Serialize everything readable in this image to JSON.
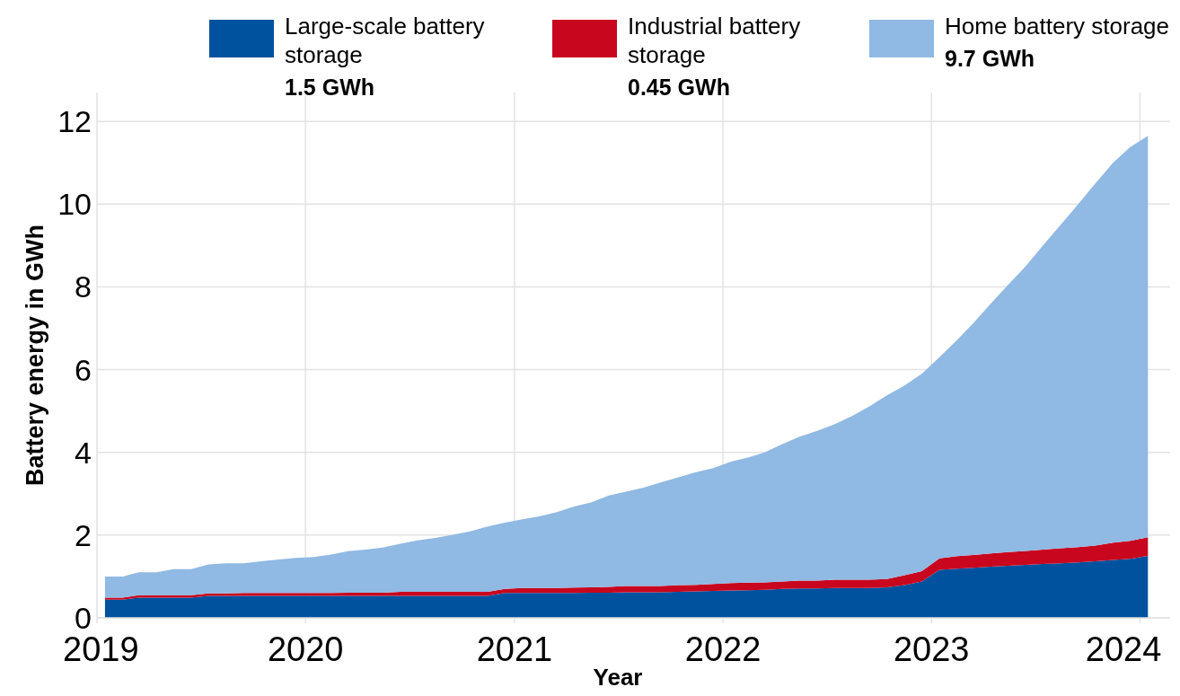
{
  "chart_data": {
    "type": "area",
    "stacked": true,
    "xlabel": "Year",
    "ylabel": "Battery energy in GWh",
    "x": [
      "2019-01-15",
      "2019-02-15",
      "2019-03-15",
      "2019-04-15",
      "2019-05-15",
      "2019-06-15",
      "2019-07-15",
      "2019-08-15",
      "2019-09-15",
      "2019-10-15",
      "2019-11-15",
      "2019-12-15",
      "2020-01-15",
      "2020-02-15",
      "2020-03-15",
      "2020-04-15",
      "2020-05-15",
      "2020-06-15",
      "2020-07-15",
      "2020-08-15",
      "2020-09-15",
      "2020-10-15",
      "2020-11-15",
      "2020-12-15",
      "2021-01-15",
      "2021-02-15",
      "2021-03-15",
      "2021-04-15",
      "2021-05-15",
      "2021-06-15",
      "2021-07-15",
      "2021-08-15",
      "2021-09-15",
      "2021-10-15",
      "2021-11-15",
      "2021-12-15",
      "2022-01-15",
      "2022-02-15",
      "2022-03-15",
      "2022-04-15",
      "2022-05-15",
      "2022-06-15",
      "2022-07-15",
      "2022-08-15",
      "2022-09-15",
      "2022-10-15",
      "2022-11-15",
      "2022-12-15",
      "2023-01-15",
      "2023-02-15",
      "2023-03-15",
      "2023-04-15",
      "2023-05-15",
      "2023-06-15",
      "2023-07-15",
      "2023-08-15",
      "2023-09-15",
      "2023-10-15",
      "2023-11-15",
      "2023-12-15",
      "2024-01-15"
    ],
    "series": [
      {
        "name": "Large-scale battery storage",
        "color": "#00529f",
        "values": [
          0.44,
          0.44,
          0.49,
          0.49,
          0.49,
          0.49,
          0.53,
          0.53,
          0.53,
          0.53,
          0.53,
          0.53,
          0.53,
          0.53,
          0.53,
          0.53,
          0.53,
          0.53,
          0.53,
          0.53,
          0.53,
          0.53,
          0.53,
          0.6,
          0.6,
          0.6,
          0.6,
          0.6,
          0.61,
          0.61,
          0.62,
          0.62,
          0.62,
          0.63,
          0.64,
          0.65,
          0.66,
          0.67,
          0.68,
          0.7,
          0.71,
          0.71,
          0.72,
          0.72,
          0.72,
          0.74,
          0.79,
          0.88,
          1.16,
          1.19,
          1.21,
          1.24,
          1.26,
          1.28,
          1.3,
          1.32,
          1.34,
          1.37,
          1.4,
          1.43,
          1.5
        ]
      },
      {
        "name": "Industrial battery storage",
        "color": "#c8071e",
        "values": [
          0.05,
          0.05,
          0.06,
          0.06,
          0.06,
          0.06,
          0.06,
          0.06,
          0.07,
          0.07,
          0.07,
          0.07,
          0.07,
          0.07,
          0.08,
          0.08,
          0.08,
          0.1,
          0.1,
          0.1,
          0.1,
          0.1,
          0.1,
          0.1,
          0.12,
          0.12,
          0.12,
          0.13,
          0.13,
          0.14,
          0.15,
          0.15,
          0.15,
          0.16,
          0.16,
          0.17,
          0.18,
          0.18,
          0.18,
          0.18,
          0.19,
          0.19,
          0.2,
          0.2,
          0.2,
          0.2,
          0.24,
          0.25,
          0.28,
          0.3,
          0.31,
          0.32,
          0.33,
          0.34,
          0.35,
          0.36,
          0.37,
          0.38,
          0.42,
          0.43,
          0.45
        ]
      },
      {
        "name": "Home battery storage",
        "color": "#90b9e3",
        "values": [
          0.51,
          0.51,
          0.55,
          0.55,
          0.63,
          0.63,
          0.7,
          0.73,
          0.72,
          0.77,
          0.81,
          0.85,
          0.87,
          0.93,
          1.0,
          1.04,
          1.09,
          1.16,
          1.24,
          1.3,
          1.38,
          1.46,
          1.58,
          1.6,
          1.66,
          1.74,
          1.83,
          1.96,
          2.05,
          2.21,
          2.28,
          2.38,
          2.51,
          2.61,
          2.72,
          2.8,
          2.94,
          3.03,
          3.14,
          3.32,
          3.48,
          3.62,
          3.76,
          3.96,
          4.2,
          4.44,
          4.59,
          4.77,
          4.86,
          5.23,
          5.6,
          6.04,
          6.46,
          6.88,
          7.35,
          7.82,
          8.29,
          8.75,
          9.18,
          9.52,
          9.7
        ]
      }
    ],
    "annotations": [
      "1.5 GWh",
      "0.45 GWh",
      "9.7 GWh"
    ],
    "xlim": [
      "2019",
      "2024-02-15"
    ],
    "xticks": [
      "2019",
      "2020",
      "2021",
      "2022",
      "2023",
      "2024"
    ],
    "ylim": [
      0,
      12.7
    ],
    "yticks": [
      0,
      2,
      4,
      6,
      8,
      10,
      12
    ],
    "grid": true,
    "legend": "top"
  }
}
